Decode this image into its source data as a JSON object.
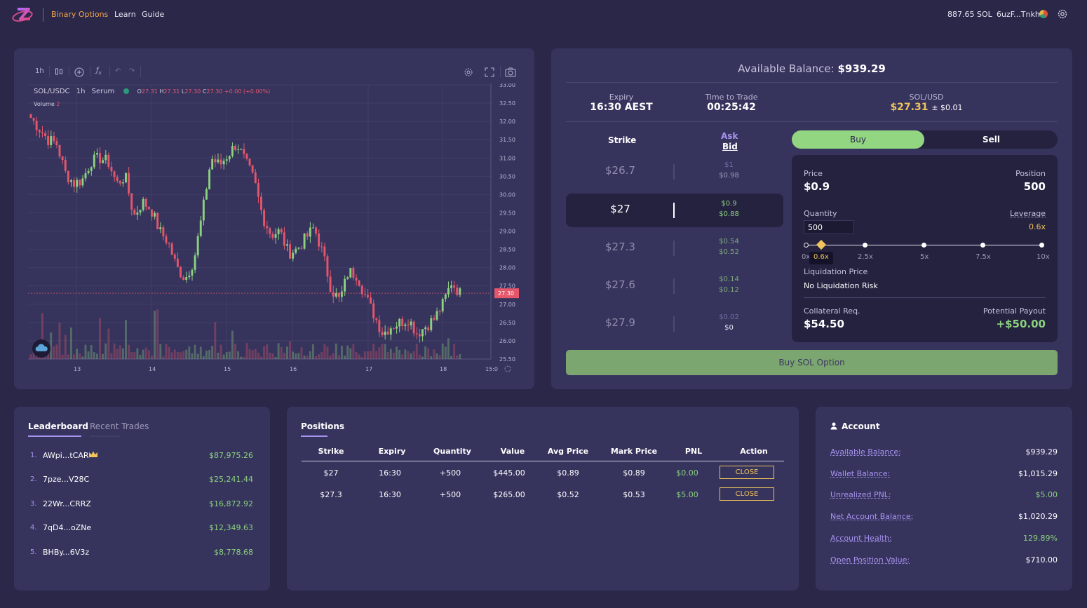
{
  "header": {
    "nav": [
      "Binary Options",
      "Learn",
      "Guide"
    ],
    "sol_balance": "887.65 SOL",
    "wallet": "6uzF...Tnkh"
  },
  "chart": {
    "toolbar": {
      "interval": "1h"
    },
    "symbol": "SOL/USDC",
    "interval": "1h",
    "exchange": "Serum",
    "ohlc": {
      "o_label": "O",
      "o": "27.31",
      "h_label": "H",
      "h": "27.31",
      "l_label": "L",
      "l": "27.30",
      "c_label": "C",
      "c": "27.30",
      "change": "+0.00 (+0.00%)"
    },
    "volume_label": "Volume",
    "volume_value": "2",
    "last_price_tag": "27.30",
    "colors": {
      "up": "#8bd17e",
      "down": "#e5566b"
    }
  },
  "chart_data": {
    "type": "candlestick",
    "price_axis": {
      "min": 25.5,
      "max": 33.0,
      "ticks": [
        "33.00",
        "32.50",
        "32.00",
        "31.50",
        "31.00",
        "30.50",
        "30.00",
        "29.50",
        "29.00",
        "28.50",
        "28.00",
        "27.50",
        "27.00",
        "26.50",
        "26.00",
        "25.50"
      ]
    },
    "time_axis": [
      "13",
      "14",
      "15",
      "16",
      "17",
      "18",
      "15:0"
    ],
    "close_series": [
      32.1,
      31.8,
      31.5,
      31.4,
      30.6,
      30.3,
      30.4,
      30.9,
      31.0,
      30.9,
      30.3,
      30.5,
      29.4,
      29.8,
      29.6,
      29.0,
      28.7,
      28.0,
      27.7,
      28.2,
      29.5,
      31.0,
      30.8,
      31.1,
      31.4,
      30.9,
      30.4,
      29.4,
      28.9,
      29.0,
      28.4,
      28.5,
      28.8,
      29.1,
      28.4,
      27.4,
      27.1,
      27.9,
      27.8,
      27.2,
      26.7,
      26.2,
      26.4,
      26.5,
      26.6,
      26.2,
      26.4,
      26.6,
      27.0,
      27.6,
      27.3
    ]
  },
  "trade": {
    "available_balance_label": "Available Balance:",
    "available_balance": "$939.29",
    "expiry_label": "Expiry",
    "expiry": "16:30 AEST",
    "time_label": "Time to Trade",
    "time_to_trade": "00:25:42",
    "pair_label": "SOL/USD",
    "pair_price": "$27.31",
    "pair_range": "± $0.01",
    "strike_header": "Strike",
    "ask_header": "Ask",
    "bid_header": "Bid",
    "strikes": [
      {
        "strike": "$26.7",
        "ask": "$1",
        "bid": "$0.98"
      },
      {
        "strike": "$27",
        "ask": "$0.9",
        "bid": "$0.88"
      },
      {
        "strike": "$27.3",
        "ask": "$0.54",
        "bid": "$0.52"
      },
      {
        "strike": "$27.6",
        "ask": "$0.14",
        "bid": "$0.12"
      },
      {
        "strike": "$27.9",
        "ask": "$0.02",
        "bid": "$0"
      }
    ],
    "buy_label": "Buy",
    "sell_label": "Sell",
    "price_label": "Price",
    "price": "$0.9",
    "position_label": "Position",
    "position": "500",
    "quantity_label": "Quantity",
    "quantity": "500",
    "leverage_label": "Leverage",
    "leverage": "0.6x",
    "leverage_marks": [
      "0x",
      "2.5x",
      "5x",
      "7.5x",
      "10x"
    ],
    "leverage_tip": "0.6x",
    "liq_label": "Liquidation Price",
    "liq_value": "No Liquidation Risk",
    "collateral_label": "Collateral Req.",
    "collateral": "$54.50",
    "payout_label": "Potential Payout",
    "payout": "+$50.00",
    "submit_label": "Buy SOL Option"
  },
  "leaderboard": {
    "tab_active": "Leaderboard",
    "tab_inactive": "Recent Trades",
    "rows": [
      {
        "rank": "1.",
        "name": "AWpi...tCAR",
        "value": "$87,975.26"
      },
      {
        "rank": "2.",
        "name": "7pze...V28C",
        "value": "$25,241.44"
      },
      {
        "rank": "3.",
        "name": "22Wr...CRRZ",
        "value": "$16,872.92"
      },
      {
        "rank": "4.",
        "name": "7qD4...oZNe",
        "value": "$12,349.63"
      },
      {
        "rank": "5.",
        "name": "BHBy...6V3z",
        "value": "$8,778.68"
      }
    ]
  },
  "positions": {
    "title": "Positions",
    "columns": [
      "Strike",
      "Expiry",
      "Quantity",
      "Value",
      "Avg Price",
      "Mark Price",
      "PNL",
      "Action"
    ],
    "rows": [
      {
        "strike": "$27",
        "expiry": "16:30",
        "quantity": "+500",
        "value": "$445.00",
        "avg": "$0.89",
        "mark": "$0.89",
        "pnl": "$0.00",
        "action": "CLOSE"
      },
      {
        "strike": "$27.3",
        "expiry": "16:30",
        "quantity": "+500",
        "value": "$265.00",
        "avg": "$0.52",
        "mark": "$0.53",
        "pnl": "$5.00",
        "action": "CLOSE"
      }
    ]
  },
  "account": {
    "title": "Account",
    "rows": [
      {
        "label": "Available Balance:",
        "value": "$939.29"
      },
      {
        "label": "Wallet Balance:",
        "value": "$1,015.29"
      },
      {
        "label": "Unrealized PNL:",
        "value": "$5.00"
      },
      {
        "label": "Net Account Balance:",
        "value": "$1,020.29"
      },
      {
        "label": "Account Health:",
        "value": "129.89%"
      },
      {
        "label": "Open Position Value:",
        "value": "$710.00"
      }
    ]
  }
}
